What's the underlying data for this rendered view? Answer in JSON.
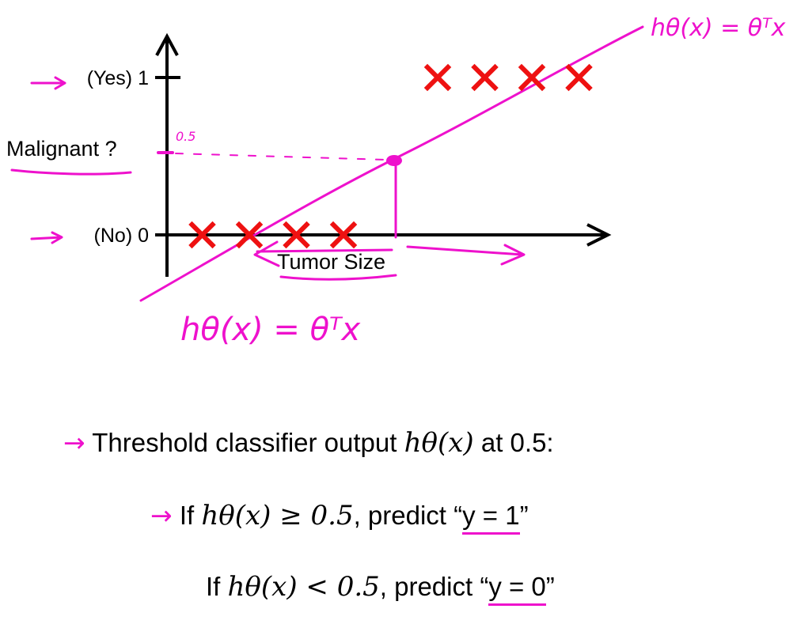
{
  "chart_data": {
    "type": "scatter",
    "xlabel": "Tumor Size",
    "ylabel": "Malignant ?",
    "ylim": [
      0,
      1
    ],
    "y_ticks": [
      {
        "value": 1,
        "label": "(Yes) 1"
      },
      {
        "value": 0,
        "label": "(No) 0"
      }
    ],
    "points": [
      {
        "x": 1,
        "y": 0
      },
      {
        "x": 2,
        "y": 0
      },
      {
        "x": 3,
        "y": 0
      },
      {
        "x": 4,
        "y": 0
      },
      {
        "x": 6,
        "y": 1
      },
      {
        "x": 7,
        "y": 1
      },
      {
        "x": 8,
        "y": 1
      },
      {
        "x": 9,
        "y": 1
      }
    ],
    "annotations": {
      "threshold_label": "0.5",
      "hypothesis_top": "hθ(x) = θᵀx",
      "hypothesis_bottom": "hθ(x) = θᵀx"
    },
    "colors": {
      "marker": "#ee1111",
      "ink": "#ee11cc",
      "axis": "#000000"
    }
  },
  "text": {
    "line1_pre": "Threshold classifier output",
    "line1_math": "hθ(x)",
    "line1_post": "at 0.5:",
    "line2_if": "If",
    "line2_math": "hθ(x) ≥ 0.5",
    "line2_predict": ", predict “",
    "line2_value": "y = 1",
    "line2_close": "”",
    "line3_if": "If",
    "line3_math": "hθ(x) < 0.5",
    "line3_predict": ", predict “",
    "line3_value": "y = 0",
    "line3_close": "”",
    "arrow": "→"
  }
}
